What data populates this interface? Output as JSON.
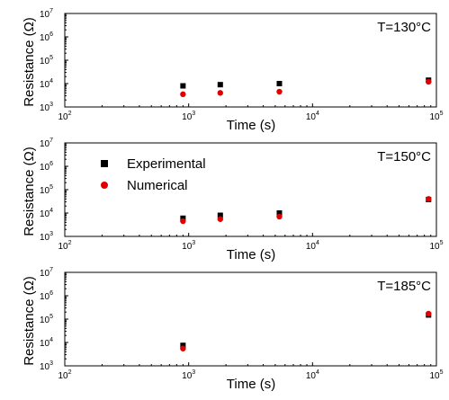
{
  "chart_data": [
    {
      "type": "scatter",
      "annotation": "T=130°C",
      "xlabel": "Time (s)",
      "ylabel": "Resistance (Ω)",
      "xscale": "log",
      "yscale": "log",
      "xlim": [
        100,
        100000
      ],
      "ylim": [
        1000,
        10000000
      ],
      "x_ticks": [
        "10",
        "10",
        "10",
        "10"
      ],
      "x_tick_exponents": [
        "2",
        "3",
        "4",
        "5"
      ],
      "y_ticks": [
        "10",
        "10",
        "10",
        "10",
        "10"
      ],
      "y_tick_exponents": [
        "3",
        "4",
        "5",
        "6",
        "7"
      ],
      "legend": null,
      "series": [
        {
          "name": "Experimental",
          "color": "#000000",
          "marker": "square",
          "x": [
            900,
            1800,
            5400,
            86400
          ],
          "y": [
            8000,
            9000,
            10000,
            14000
          ]
        },
        {
          "name": "Numerical",
          "color": "#e00000",
          "marker": "circle",
          "x": [
            900,
            1800,
            5400,
            86400
          ],
          "y": [
            3500,
            4000,
            4500,
            12000
          ]
        }
      ]
    },
    {
      "type": "scatter",
      "annotation": "T=150°C",
      "xlabel": "Time (s)",
      "ylabel": "Resistance (Ω)",
      "xscale": "log",
      "yscale": "log",
      "xlim": [
        100,
        100000
      ],
      "ylim": [
        1000,
        10000000
      ],
      "x_ticks": [
        "10",
        "10",
        "10",
        "10"
      ],
      "x_tick_exponents": [
        "2",
        "3",
        "4",
        "5"
      ],
      "y_ticks": [
        "10",
        "10",
        "10",
        "10",
        "10"
      ],
      "y_tick_exponents": [
        "3",
        "4",
        "5",
        "6",
        "7"
      ],
      "legend": "top-left",
      "series": [
        {
          "name": "Experimental",
          "color": "#000000",
          "marker": "square",
          "x": [
            900,
            1800,
            5400,
            86400
          ],
          "y": [
            6000,
            8000,
            10000,
            38000
          ]
        },
        {
          "name": "Numerical",
          "color": "#e00000",
          "marker": "circle",
          "x": [
            900,
            1800,
            5400,
            86400
          ],
          "y": [
            4500,
            5500,
            7000,
            40000
          ]
        }
      ]
    },
    {
      "type": "scatter",
      "annotation": "T=185°C",
      "xlabel": "Time (s)",
      "ylabel": "Resistance (Ω)",
      "xscale": "log",
      "yscale": "log",
      "xlim": [
        100,
        100000
      ],
      "ylim": [
        1000,
        10000000
      ],
      "x_ticks": [
        "10",
        "10",
        "10",
        "10"
      ],
      "x_tick_exponents": [
        "2",
        "3",
        "4",
        "5"
      ],
      "y_ticks": [
        "10",
        "10",
        "10",
        "10",
        "10"
      ],
      "y_tick_exponents": [
        "3",
        "4",
        "5",
        "6",
        "7"
      ],
      "legend": null,
      "series": [
        {
          "name": "Experimental",
          "color": "#000000",
          "marker": "square",
          "x": [
            900,
            86400
          ],
          "y": [
            7500,
            150000
          ]
        },
        {
          "name": "Numerical",
          "color": "#e00000",
          "marker": "circle",
          "x": [
            900,
            86400
          ],
          "y": [
            5500,
            170000
          ]
        }
      ]
    }
  ]
}
